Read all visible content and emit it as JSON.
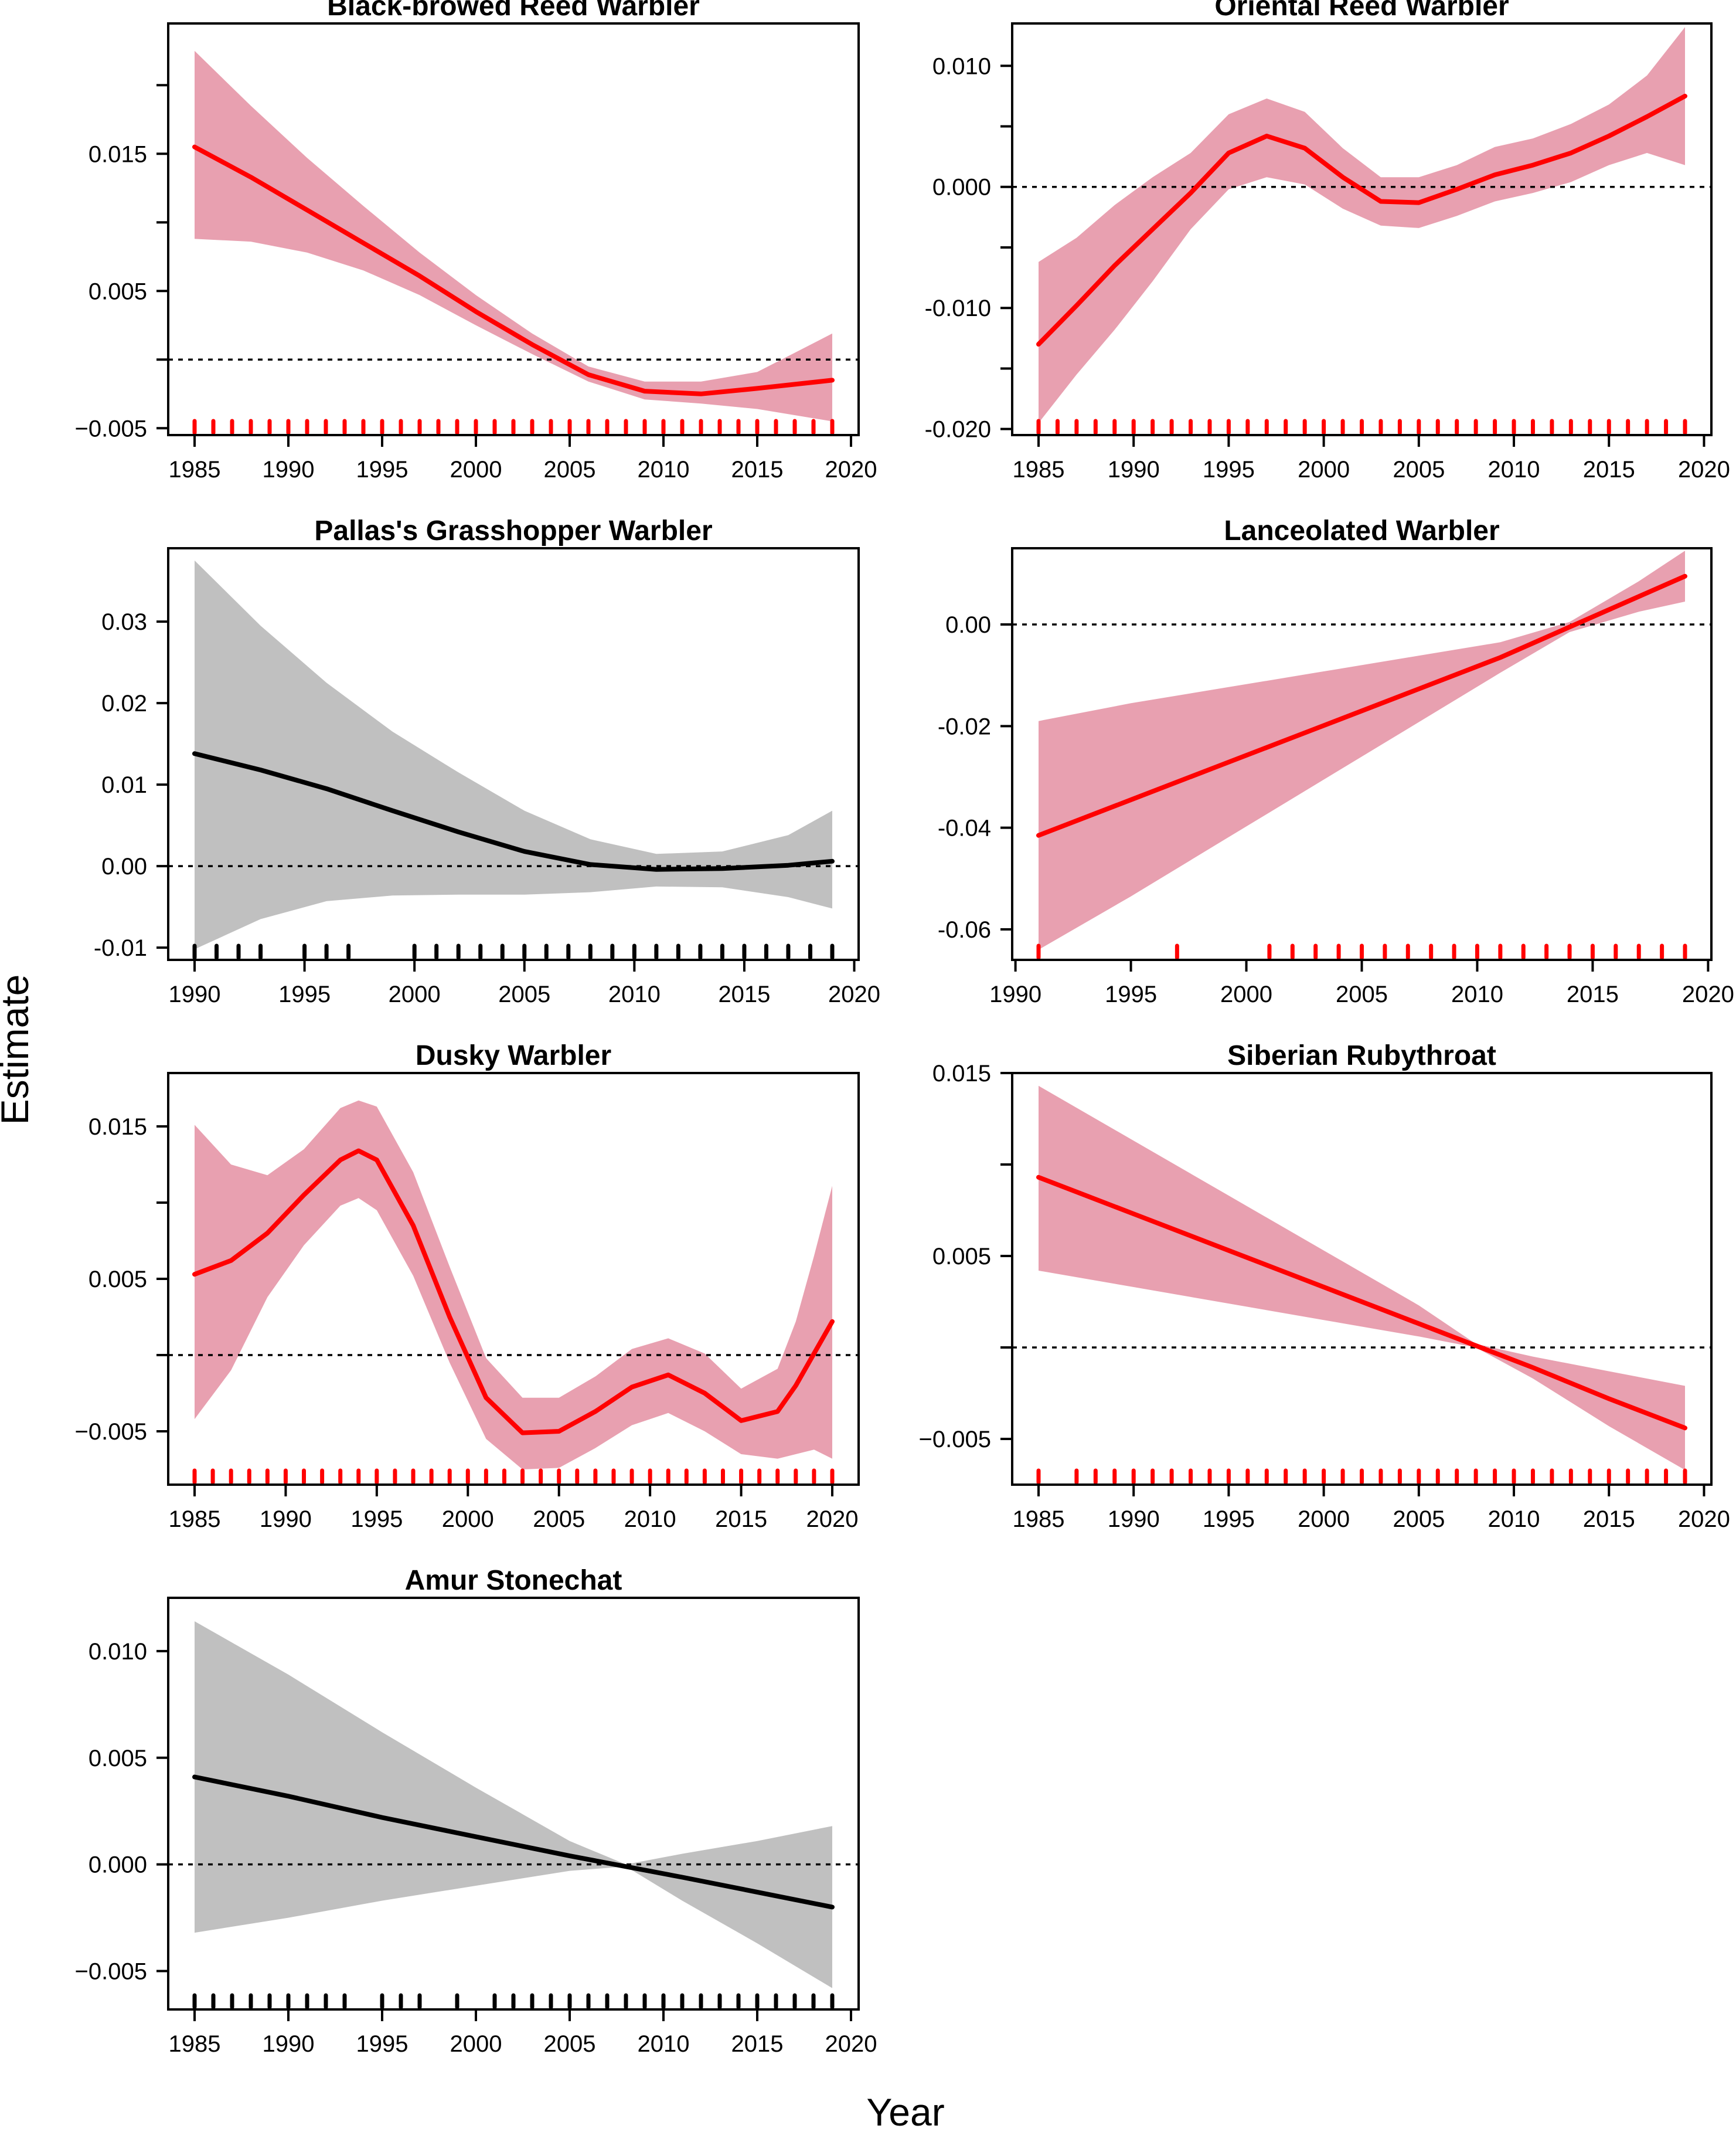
{
  "figure": {
    "xlabel": "Year",
    "ylabel": "Estimate"
  },
  "colors": {
    "significant_line": "#ff0000",
    "significant_band": "#e8a0b0",
    "nonsignificant_line": "#000000",
    "nonsignificant_band": "#c0c0c0",
    "rug_significant": "#ff0000",
    "rug_nonsignificant": "#000000"
  },
  "chart_data": [
    {
      "type": "line",
      "title": "Black-browed Reed Warbler",
      "significant": true,
      "xlim": [
        1985,
        2019
      ],
      "ylim": [
        -0.0055,
        0.0245
      ],
      "xticks": [
        1985,
        1990,
        1995,
        2000,
        2005,
        2010,
        2015,
        2020
      ],
      "xtick_labels": [
        "1985",
        "1990",
        "1995",
        "2000",
        "2005",
        "2010",
        "2015",
        "2020"
      ],
      "yticks": [
        -0.005,
        0.0,
        0.005,
        0.01,
        0.015,
        0.02
      ],
      "ytick_labels": [
        "−0.005",
        "",
        "0.005",
        "",
        "0.015",
        ""
      ],
      "reference_line": 0,
      "x": [
        1985,
        1988,
        1991,
        1994,
        1997,
        2000,
        2003,
        2006,
        2009,
        2012,
        2015,
        2019
      ],
      "y": [
        0.0155,
        0.0133,
        0.0109,
        0.0085,
        0.0061,
        0.0035,
        0.0011,
        -0.0011,
        -0.0023,
        -0.0025,
        -0.0021,
        -0.0015
      ],
      "lower": [
        0.0088,
        0.0086,
        0.0078,
        0.0065,
        0.0047,
        0.0025,
        0.0004,
        -0.0016,
        -0.0029,
        -0.0032,
        -0.0036,
        -0.0045
      ],
      "upper": [
        0.0225,
        0.0185,
        0.0147,
        0.0112,
        0.0078,
        0.0047,
        0.0019,
        -0.0005,
        -0.0016,
        -0.0016,
        -0.0009,
        0.0019
      ],
      "rug": [
        1985,
        1986,
        1987,
        1988,
        1989,
        1990,
        1991,
        1992,
        1993,
        1994,
        1995,
        1996,
        1997,
        1998,
        1999,
        2000,
        2001,
        2002,
        2003,
        2004,
        2005,
        2006,
        2007,
        2008,
        2009,
        2010,
        2011,
        2012,
        2013,
        2014,
        2015,
        2016,
        2017,
        2018,
        2019
      ]
    },
    {
      "type": "line",
      "title": "Oriental Reed Warbler",
      "significant": true,
      "xlim": [
        1985,
        2019
      ],
      "ylim": [
        -0.0205,
        0.0135
      ],
      "xticks": [
        1985,
        1990,
        1995,
        2000,
        2005,
        2010,
        2015,
        2020
      ],
      "xtick_labels": [
        "1985",
        "1990",
        "1995",
        "2000",
        "2005",
        "2010",
        "2015",
        "2020"
      ],
      "yticks": [
        -0.02,
        -0.015,
        -0.01,
        -0.005,
        0.0,
        0.005,
        0.01
      ],
      "ytick_labels": [
        "-0.020",
        "",
        "-0.010",
        "",
        "0.000",
        "",
        "0.010"
      ],
      "reference_line": 0,
      "x": [
        1985,
        1987,
        1989,
        1991,
        1993,
        1995,
        1997,
        1999,
        2001,
        2003,
        2005,
        2007,
        2009,
        2011,
        2013,
        2015,
        2017,
        2019
      ],
      "y": [
        -0.013,
        -0.0098,
        -0.0065,
        -0.0035,
        -0.0005,
        0.0028,
        0.0042,
        0.0032,
        0.0008,
        -0.0012,
        -0.0013,
        -0.0002,
        0.001,
        0.0018,
        0.0028,
        0.0042,
        0.0058,
        0.0075
      ],
      "lower": [
        -0.0195,
        -0.0155,
        -0.0118,
        -0.0078,
        -0.0035,
        -0.0002,
        0.0008,
        0.0002,
        -0.0018,
        -0.0032,
        -0.0034,
        -0.0024,
        -0.0012,
        -0.0005,
        0.0004,
        0.0018,
        0.0028,
        0.0018
      ],
      "upper": [
        -0.0062,
        -0.0042,
        -0.0015,
        0.0008,
        0.0028,
        0.006,
        0.0073,
        0.0062,
        0.0032,
        0.0008,
        0.0008,
        0.0018,
        0.0033,
        0.004,
        0.0052,
        0.0068,
        0.0092,
        0.0132
      ],
      "rug": [
        1985,
        1986,
        1987,
        1988,
        1989,
        1990,
        1991,
        1992,
        1993,
        1994,
        1995,
        1996,
        1997,
        1998,
        1999,
        2000,
        2001,
        2002,
        2003,
        2004,
        2005,
        2006,
        2007,
        2008,
        2009,
        2010,
        2011,
        2012,
        2013,
        2014,
        2015,
        2016,
        2017,
        2018,
        2019
      ]
    },
    {
      "type": "line",
      "title": "Pallas's Grasshopper Warbler",
      "significant": false,
      "xlim": [
        1990,
        2019
      ],
      "ylim": [
        -0.0115,
        0.039
      ],
      "xticks": [
        1990,
        1995,
        2000,
        2005,
        2010,
        2015,
        2020
      ],
      "xtick_labels": [
        "1990",
        "1995",
        "2000",
        "2005",
        "2010",
        "2015",
        "2020"
      ],
      "yticks": [
        -0.01,
        0.0,
        0.01,
        0.02,
        0.03
      ],
      "ytick_labels": [
        "-0.01",
        "0.00",
        "0.01",
        "0.02",
        "0.03"
      ],
      "reference_line": 0,
      "x": [
        1990,
        1993,
        1996,
        1999,
        2002,
        2005,
        2008,
        2011,
        2014,
        2017,
        2019
      ],
      "y": [
        0.0138,
        0.0118,
        0.0095,
        0.0068,
        0.0042,
        0.0018,
        0.0002,
        -0.0004,
        -0.0003,
        0.0001,
        0.0006
      ],
      "lower": [
        -0.0102,
        -0.0065,
        -0.0043,
        -0.0036,
        -0.0035,
        -0.0035,
        -0.0032,
        -0.0025,
        -0.0026,
        -0.0038,
        -0.0052
      ],
      "upper": [
        0.0375,
        0.0295,
        0.0225,
        0.0165,
        0.0115,
        0.0068,
        0.0033,
        0.0015,
        0.0018,
        0.0038,
        0.0068
      ],
      "rug": [
        1990,
        1991,
        1992,
        1993,
        1995,
        1996,
        1997,
        2000,
        2001,
        2002,
        2003,
        2004,
        2005,
        2006,
        2007,
        2008,
        2009,
        2010,
        2011,
        2012,
        2013,
        2014,
        2015,
        2016,
        2017,
        2018,
        2019
      ]
    },
    {
      "type": "line",
      "title": "Lanceolated Warbler",
      "significant": true,
      "xlim": [
        1991,
        2019
      ],
      "ylim": [
        -0.066,
        0.015
      ],
      "xticks": [
        1990,
        1995,
        2000,
        2005,
        2010,
        2015,
        2020
      ],
      "xtick_labels": [
        "1990",
        "1995",
        "2000",
        "2005",
        "2010",
        "2015",
        "2020"
      ],
      "yticks": [
        -0.06,
        -0.04,
        -0.02,
        0.0
      ],
      "ytick_labels": [
        "-0.06",
        "-0.04",
        "-0.02",
        "0.00"
      ],
      "reference_line": 0,
      "x": [
        1991,
        1995,
        1999,
        2003,
        2007,
        2011,
        2014,
        2017,
        2019
      ],
      "y": [
        -0.0415,
        -0.0345,
        -0.0275,
        -0.0205,
        -0.0135,
        -0.0065,
        -0.0005,
        0.0055,
        0.0095
      ],
      "lower": [
        -0.064,
        -0.0535,
        -0.0425,
        -0.0315,
        -0.0205,
        -0.0095,
        -0.0015,
        0.0025,
        0.0045
      ],
      "upper": [
        -0.019,
        -0.0155,
        -0.0125,
        -0.0095,
        -0.0065,
        -0.0035,
        0.0005,
        0.0085,
        0.0145
      ],
      "rug": [
        1991,
        1997,
        2001,
        2002,
        2003,
        2004,
        2005,
        2006,
        2007,
        2008,
        2009,
        2010,
        2011,
        2012,
        2013,
        2014,
        2015,
        2016,
        2017,
        2018,
        2019
      ]
    },
    {
      "type": "line",
      "title": "Dusky Warbler",
      "significant": true,
      "xlim": [
        1985,
        2020
      ],
      "ylim": [
        -0.0085,
        0.0185
      ],
      "xticks": [
        1985,
        1990,
        1995,
        2000,
        2005,
        2010,
        2015,
        2020
      ],
      "xtick_labels": [
        "1985",
        "1990",
        "1995",
        "2000",
        "2005",
        "2010",
        "2015",
        "2020"
      ],
      "yticks": [
        -0.005,
        0.0,
        0.005,
        0.01,
        0.015
      ],
      "ytick_labels": [
        "−0.005",
        "",
        "0.005",
        "",
        "0.015"
      ],
      "reference_line": 0,
      "x": [
        1985,
        1987,
        1989,
        1991,
        1993,
        1994,
        1995,
        1997,
        1999,
        2001,
        2003,
        2005,
        2007,
        2009,
        2011,
        2013,
        2015,
        2017,
        2018,
        2019,
        2020
      ],
      "y": [
        0.0053,
        0.0062,
        0.008,
        0.0105,
        0.0128,
        0.0134,
        0.0128,
        0.0085,
        0.0025,
        -0.0028,
        -0.0051,
        -0.005,
        -0.0037,
        -0.0021,
        -0.0013,
        -0.0025,
        -0.0043,
        -0.0037,
        -0.002,
        0.0001,
        0.0022
      ],
      "lower": [
        -0.0042,
        -0.001,
        0.0038,
        0.0072,
        0.0098,
        0.0103,
        0.0095,
        0.0052,
        -0.0005,
        -0.0055,
        -0.0075,
        -0.0074,
        -0.0061,
        -0.0046,
        -0.0038,
        -0.005,
        -0.0065,
        -0.0068,
        -0.0065,
        -0.0062,
        -0.0068
      ],
      "upper": [
        0.0151,
        0.0125,
        0.0118,
        0.0135,
        0.0162,
        0.0167,
        0.0163,
        0.012,
        0.0058,
        -0.0002,
        -0.0028,
        -0.0028,
        -0.0014,
        0.0004,
        0.0011,
        0.0001,
        -0.0022,
        -0.0009,
        0.0022,
        0.0065,
        0.0111
      ],
      "rug": [
        1985,
        1986,
        1987,
        1988,
        1989,
        1990,
        1991,
        1992,
        1993,
        1994,
        1995,
        1996,
        1997,
        1998,
        1999,
        2000,
        2001,
        2002,
        2003,
        2004,
        2005,
        2006,
        2007,
        2008,
        2009,
        2010,
        2011,
        2012,
        2013,
        2014,
        2015,
        2016,
        2017,
        2018,
        2019,
        2020
      ]
    },
    {
      "type": "line",
      "title": "Siberian Rubythroat",
      "significant": true,
      "xlim": [
        1985,
        2019
      ],
      "ylim": [
        -0.0075,
        0.015
      ],
      "xticks": [
        1985,
        1990,
        1995,
        2000,
        2005,
        2010,
        2015,
        2020
      ],
      "xtick_labels": [
        "1985",
        "1990",
        "1995",
        "2000",
        "2005",
        "2010",
        "2015",
        "2020"
      ],
      "yticks": [
        -0.005,
        0.0,
        0.005,
        0.01,
        0.015
      ],
      "ytick_labels": [
        "−0.005",
        "",
        "0.005",
        "",
        "0.015"
      ],
      "reference_line": 0,
      "x": [
        1985,
        1990,
        1995,
        2000,
        2005,
        2008,
        2011,
        2015,
        2019
      ],
      "y": [
        0.0093,
        0.0073,
        0.0053,
        0.0033,
        0.0013,
        0.0001,
        -0.0011,
        -0.0028,
        -0.0044
      ],
      "lower": [
        0.0042,
        0.0033,
        0.0024,
        0.0015,
        0.0006,
        0.0,
        -0.0017,
        -0.0043,
        -0.0067
      ],
      "upper": [
        0.0143,
        0.0113,
        0.0083,
        0.0053,
        0.0023,
        0.0002,
        -0.0005,
        -0.0013,
        -0.0021
      ],
      "rug": [
        1985,
        1987,
        1988,
        1989,
        1990,
        1991,
        1992,
        1993,
        1994,
        1995,
        1996,
        1997,
        1998,
        1999,
        2000,
        2001,
        2002,
        2003,
        2004,
        2005,
        2006,
        2007,
        2008,
        2009,
        2010,
        2011,
        2012,
        2013,
        2014,
        2015,
        2016,
        2017,
        2018,
        2019
      ]
    },
    {
      "type": "line",
      "title": "Amur Stonechat",
      "significant": false,
      "xlim": [
        1985,
        2019
      ],
      "ylim": [
        -0.0068,
        0.0125
      ],
      "xticks": [
        1985,
        1990,
        1995,
        2000,
        2005,
        2010,
        2015,
        2020
      ],
      "xtick_labels": [
        "1985",
        "1990",
        "1995",
        "2000",
        "2005",
        "2010",
        "2015",
        "2020"
      ],
      "yticks": [
        -0.005,
        0.0,
        0.005,
        0.01
      ],
      "ytick_labels": [
        "−0.005",
        "0.000",
        "0.005",
        "0.010"
      ],
      "reference_line": 0,
      "x": [
        1985,
        1990,
        1995,
        2000,
        2005,
        2008,
        2011,
        2015,
        2019
      ],
      "y": [
        0.0041,
        0.0032,
        0.0022,
        0.0013,
        0.0004,
        -0.0001,
        -0.0006,
        -0.0013,
        -0.002
      ],
      "lower": [
        -0.0032,
        -0.0025,
        -0.0017,
        -0.001,
        -0.0003,
        -0.0001,
        -0.0017,
        -0.0037,
        -0.0058
      ],
      "upper": [
        0.0114,
        0.0089,
        0.0062,
        0.0036,
        0.0011,
        0.0,
        0.0005,
        0.0011,
        0.0018
      ],
      "rug": [
        1985,
        1986,
        1987,
        1988,
        1989,
        1990,
        1991,
        1992,
        1993,
        1995,
        1996,
        1997,
        1999,
        2001,
        2002,
        2003,
        2004,
        2005,
        2006,
        2007,
        2008,
        2009,
        2010,
        2011,
        2012,
        2013,
        2014,
        2015,
        2016,
        2017,
        2018,
        2019
      ]
    }
  ]
}
